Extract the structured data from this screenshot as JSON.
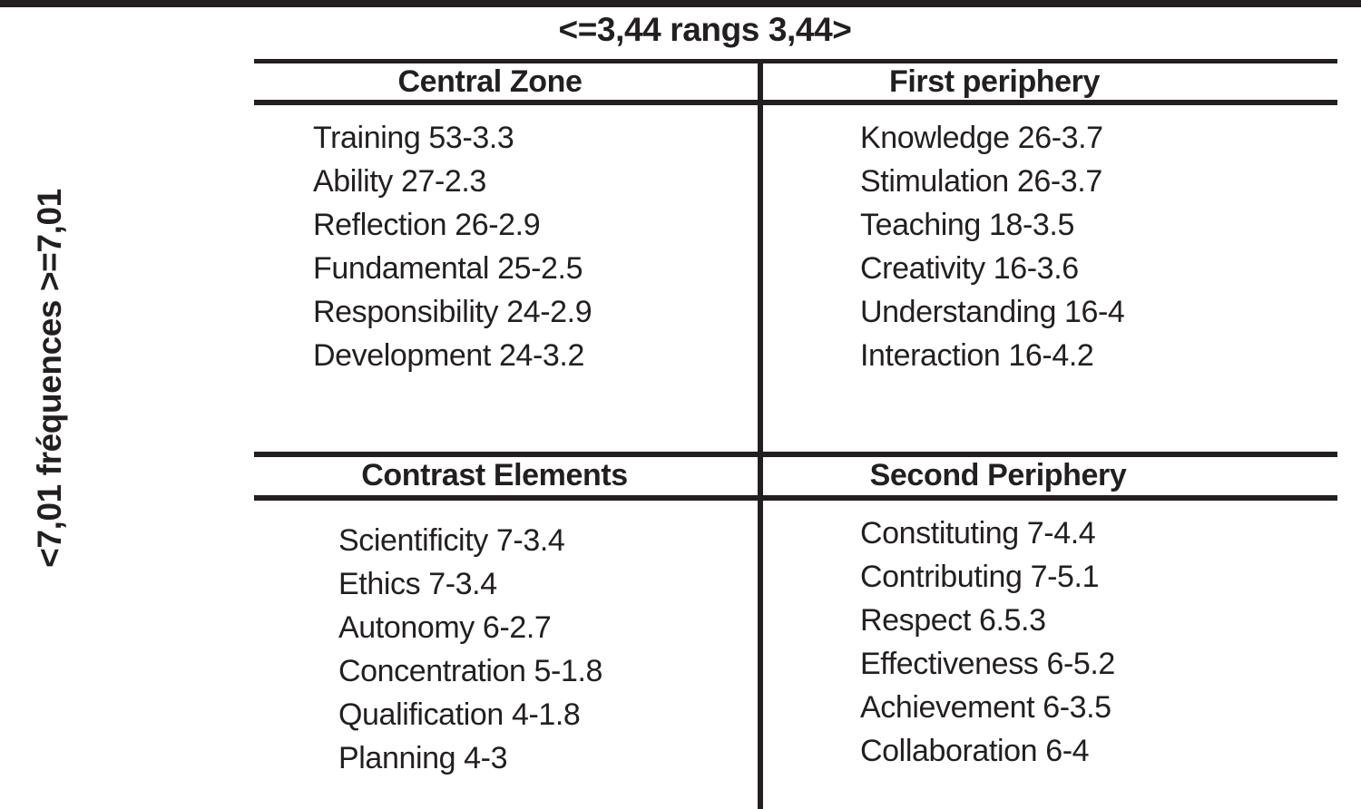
{
  "figure": {
    "title": "<=3,44 rangs 3,44>",
    "y_axis_label": "<7,01 fréquences >=7,01"
  },
  "colors": {
    "ink": "#231f20",
    "background": "#ffffff"
  },
  "quadrants": [
    {
      "position": "top-left",
      "header": "Central Zone",
      "items": [
        "Training 53-3.3",
        "Ability 27-2.3",
        "Reflection 26-2.9",
        "Fundamental 25-2.5",
        "Responsibility 24-2.9",
        "Development 24-3.2"
      ]
    },
    {
      "position": "top-right",
      "header": "First periphery",
      "items": [
        "Knowledge 26-3.7",
        "Stimulation 26-3.7",
        "Teaching 18-3.5",
        "Creativity 16-3.6",
        "Understanding 16-4",
        "Interaction 16-4.2"
      ]
    },
    {
      "position": "bottom-left",
      "header": "Contrast Elements",
      "items": [
        "Scientificity 7-3.4",
        "Ethics 7-3.4",
        "Autonomy 6-2.7",
        "Concentration 5-1.8",
        "Qualification 4-1.8",
        "Planning 4-3"
      ]
    },
    {
      "position": "bottom-right",
      "header": "Second Periphery",
      "items": [
        "Constituting 7-4.4",
        "Contributing 7-5.1",
        "Respect 6.5.3",
        "Effectiveness 6-5.2",
        "Achievement 6-3.5",
        "Collaboration 6-4"
      ]
    }
  ]
}
